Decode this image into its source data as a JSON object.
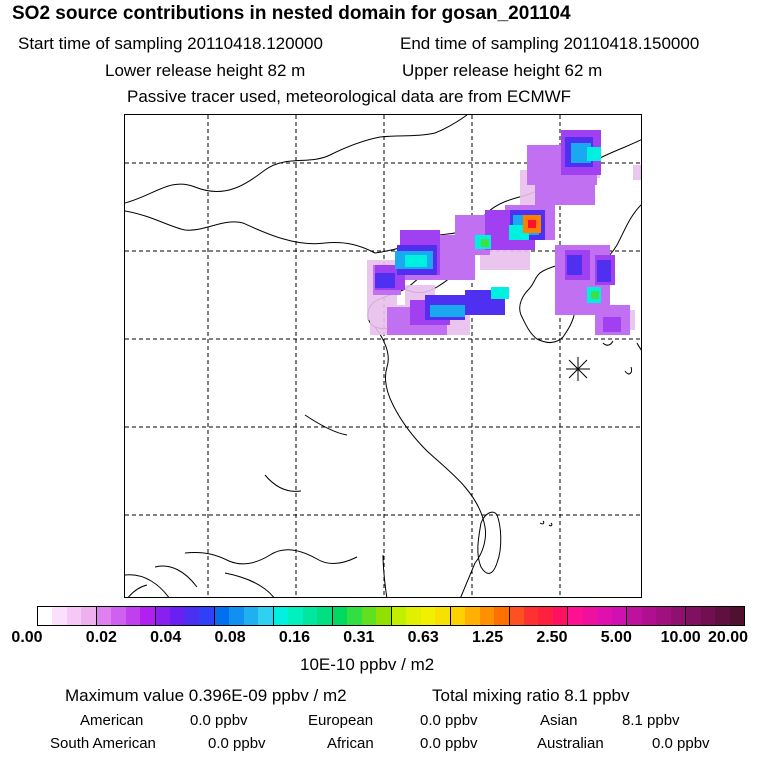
{
  "header": {
    "title": "SO2 source contributions in nested domain for gosan_201104",
    "start_time": "Start time of sampling 20110418.120000",
    "end_time": "End time of sampling 20110418.150000",
    "lower_release": "Lower release height   82 m",
    "upper_release": "Upper release height   62 m",
    "note": "Passive tracer used, meteorological data are from ECMWF"
  },
  "legend": {
    "ticks": [
      "0.00",
      "0.02",
      "0.04",
      "0.08",
      "0.16",
      "0.31",
      "0.63",
      "1.25",
      "2.50",
      "5.00",
      "10.00",
      "20.00"
    ],
    "colors": [
      "#ffffff",
      "#fbe0fb",
      "#f5c8f5",
      "#efb0ef",
      "#e080f0",
      "#d060f0",
      "#c040f0",
      "#b020f0",
      "#8a20f0",
      "#6a20f0",
      "#4a30f0",
      "#3040f8",
      "#0070f0",
      "#1090f0",
      "#20b0f0",
      "#30d0f0",
      "#00f0e0",
      "#00f0c0",
      "#00e8a0",
      "#00e080",
      "#00d860",
      "#30e040",
      "#60e020",
      "#90e000",
      "#c0f000",
      "#e0f000",
      "#f0f000",
      "#f8e000",
      "#ffd000",
      "#ffb000",
      "#ff9000",
      "#ff7000",
      "#ff5020",
      "#ff3030",
      "#ff2040",
      "#ff1060",
      "#ff1090",
      "#f010a0",
      "#e010b0",
      "#d010b0",
      "#c010a0",
      "#b01090",
      "#a01080",
      "#901070",
      "#801060",
      "#701050",
      "#601040",
      "#501030"
    ],
    "units": "10E-10 ppbv / m2"
  },
  "summary": {
    "max_value": "Maximum value  0.396E-09 ppbv / m2",
    "total_mixing": "Total mixing ratio       8.1 ppbv",
    "american_label": "American",
    "american_value": "0.0 ppbv",
    "european_label": "European",
    "european_value": "0.0 ppbv",
    "asian_label": "Asian",
    "asian_value": "8.1 ppbv",
    "south_american_label": "South American",
    "south_american_value": "0.0 ppbv",
    "african_label": "African",
    "african_value": "0.0 ppbv",
    "australian_label": "Australian",
    "australian_value": "0.0 ppbv"
  }
}
